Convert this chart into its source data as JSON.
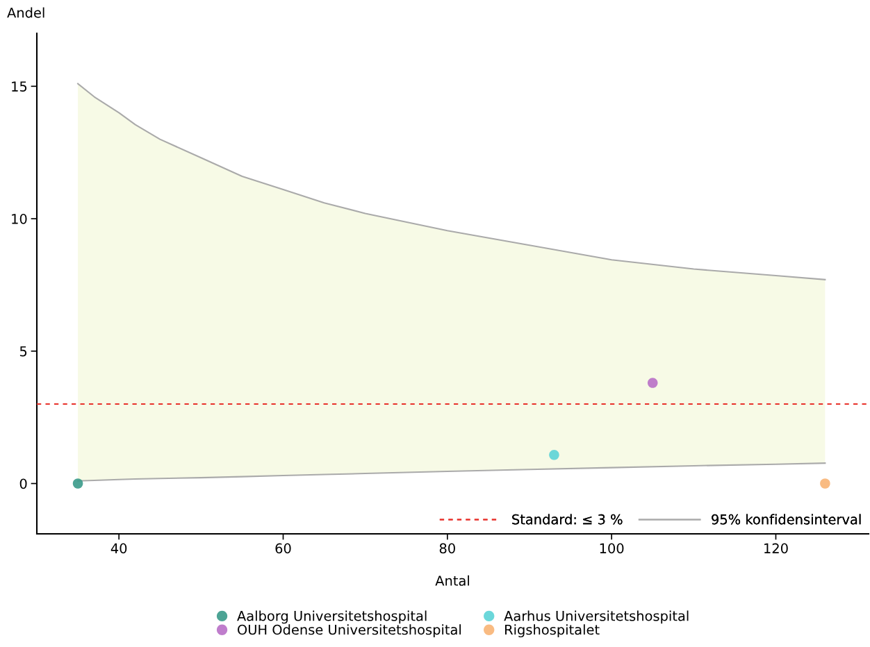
{
  "chart_data": {
    "type": "scatter",
    "xlabel": "Antal",
    "ylabel": "Andel",
    "xlim": [
      30,
      131.3
    ],
    "ylim": [
      -1.9,
      17
    ],
    "xticks": [
      40,
      60,
      80,
      100,
      120
    ],
    "yticks": [
      0,
      5,
      10,
      15
    ],
    "grid": false,
    "legend": "bottom",
    "marker": "circle",
    "series": [
      {
        "name": "95% konfidensinterval",
        "type": "line",
        "marker": "none",
        "color": "#aaaaaa",
        "x": [
          35,
          37,
          40,
          42,
          45,
          50,
          55,
          60,
          65,
          70,
          80,
          90,
          100,
          110,
          120,
          126
        ],
        "values": [
          15.1,
          14.6,
          14.0,
          13.55,
          13.0,
          12.3,
          11.6,
          11.1,
          10.6,
          10.2,
          9.55,
          9.0,
          8.45,
          8.1,
          7.85,
          7.7
        ],
        "upper": [
          15.1,
          14.6,
          14.0,
          13.55,
          13.0,
          12.3,
          11.6,
          11.1,
          10.6,
          10.2,
          9.55,
          9.0,
          8.45,
          8.1,
          7.85,
          7.7
        ],
        "lower": [
          0.1,
          0.12,
          0.15,
          0.17,
          0.19,
          0.22,
          0.26,
          0.3,
          0.34,
          0.38,
          0.46,
          0.53,
          0.6,
          0.67,
          0.73,
          0.77
        ]
      },
      {
        "type": "line",
        "marker": "none",
        "color": "#aaaaaa",
        "x": [
          35,
          37,
          40,
          42,
          45,
          50,
          55,
          60,
          65,
          70,
          80,
          90,
          100,
          110,
          120,
          126
        ],
        "values": [
          0.1,
          0.12,
          0.15,
          0.17,
          0.19,
          0.22,
          0.26,
          0.3,
          0.34,
          0.38,
          0.46,
          0.53,
          0.6,
          0.67,
          0.73,
          0.77
        ]
      },
      {
        "name": "Aalborg Universitetshospital",
        "color": "#3a9a8a",
        "x": [
          35
        ],
        "values": [
          0
        ]
      },
      {
        "name": "OUH Odense Universitetshospital",
        "color": "#b86fc6",
        "x": [
          105
        ],
        "values": [
          3.8
        ]
      },
      {
        "name": "Aarhus Universitetshospital",
        "color": "#5bd3d6",
        "x": [
          93
        ],
        "values": [
          1.08
        ]
      },
      {
        "name": "Rigshospitalet",
        "color": "#f8b474",
        "x": [
          126
        ],
        "values": [
          0
        ]
      }
    ],
    "ref_lines": [
      {
        "axis": "y",
        "value": 3,
        "label": "Standard: ≤ 3 %",
        "color": "#e8302a",
        "line_style": "dashed"
      }
    ]
  }
}
